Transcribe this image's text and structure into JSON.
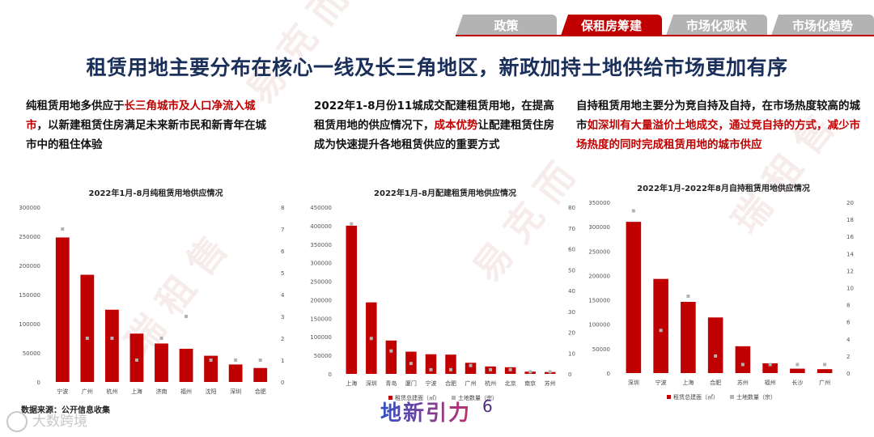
{
  "nav": {
    "tabs": [
      {
        "label": "政策",
        "active": false
      },
      {
        "label": "保租房筹建",
        "active": true
      },
      {
        "label": "市场化现状",
        "active": false
      },
      {
        "label": "市场化趋势",
        "active": false
      }
    ]
  },
  "title": "租赁用地主要分布在核心一线及长三角地区，新政加持土地供给市场更加有序",
  "descriptions": [
    {
      "parts": [
        {
          "text": "纯租赁用地多供应于",
          "hl": false
        },
        {
          "text": "长三角城市及人口净流入城市",
          "hl": true
        },
        {
          "text": "，以新建租赁住房满足未来新市民和新青年在城市中的租住体验",
          "hl": false
        }
      ]
    },
    {
      "parts": [
        {
          "text": "2022年1-8月份11城成交配建租赁用地，在提高租赁用地的供应情况下，",
          "hl": false
        },
        {
          "text": "成本优势",
          "hl": true
        },
        {
          "text": "让配建租赁住房成为快速提升各地租赁供应的重要方式",
          "hl": false
        }
      ]
    },
    {
      "parts": [
        {
          "text": "自持租赁用地主要分为竞自持及自持，在市场热度较高的城市",
          "hl": false
        },
        {
          "text": "如深圳有大量溢价土地成交，通过竞自持的方式，减少市场热度的同时完成租赁用地的城市供应",
          "hl": true
        }
      ]
    }
  ],
  "colors": {
    "bar": "#c00000",
    "marker": "#b3b3b3",
    "title": "#1a2f5a",
    "accent": "#c00000"
  },
  "chart_data": [
    {
      "type": "bar",
      "title": "2022年1月-8月纯租赁用地供应情况",
      "categories": [
        "宁波",
        "广州",
        "杭州",
        "上海",
        "济南",
        "福州",
        "沈阳",
        "深圳",
        "合肥"
      ],
      "series": [
        {
          "name": "",
          "axis": "left",
          "kind": "bar",
          "values": [
            248000,
            184000,
            124000,
            83000,
            66000,
            57000,
            45000,
            30000,
            24000
          ]
        },
        {
          "name": "",
          "axis": "right",
          "kind": "marker",
          "values": [
            7,
            2,
            2,
            1,
            2,
            3,
            1,
            1,
            1
          ]
        }
      ],
      "ylim_left": [
        0,
        300000
      ],
      "yticks_left": [
        0,
        50000,
        100000,
        150000,
        200000,
        250000,
        300000
      ],
      "ylim_right": [
        0,
        8
      ],
      "yticks_right": [
        0,
        1,
        2,
        3,
        4,
        5,
        6,
        7,
        8
      ],
      "legend": [],
      "legend_position": "none",
      "grid": false
    },
    {
      "type": "bar",
      "title": "2022年1月-8月配建租赁用地供应情况",
      "categories": [
        "上海",
        "深圳",
        "青岛",
        "厦门",
        "宁波",
        "合肥",
        "广州",
        "杭州",
        "北京",
        "南京",
        "苏州"
      ],
      "series": [
        {
          "name": "租赁总建面（㎡）",
          "axis": "left",
          "kind": "bar",
          "values": [
            400000,
            193000,
            90000,
            60000,
            53000,
            52000,
            30000,
            20000,
            18000,
            6000,
            5000
          ]
        },
        {
          "name": "土地数量（宗）",
          "axis": "right",
          "kind": "marker",
          "values": [
            72,
            17,
            11,
            5,
            2,
            2,
            4,
            2,
            2,
            1,
            1
          ]
        }
      ],
      "ylim_left": [
        0,
        450000
      ],
      "yticks_left": [
        0,
        50000,
        100000,
        150000,
        200000,
        250000,
        300000,
        350000,
        400000,
        450000
      ],
      "ylim_right": [
        0,
        80
      ],
      "yticks_right": [
        0,
        10,
        20,
        30,
        40,
        50,
        60,
        70,
        80
      ],
      "legend": [
        "租赁总建面（㎡）",
        "土地数量（宗）"
      ],
      "legend_position": "bottom",
      "grid": false
    },
    {
      "type": "bar",
      "title": "2022年1月-2022年8月自持租赁用地供应情况",
      "categories": [
        "深圳",
        "宁波",
        "上海",
        "合肥",
        "苏州",
        "福州",
        "长沙",
        "广州"
      ],
      "series": [
        {
          "name": "租赁总建面（㎡）",
          "axis": "left",
          "kind": "bar",
          "values": [
            310000,
            193000,
            146000,
            114000,
            55000,
            20000,
            9000,
            8000
          ]
        },
        {
          "name": "土地数量（宗）",
          "axis": "right",
          "kind": "marker",
          "values": [
            19,
            5,
            9,
            2,
            1,
            1,
            1,
            1
          ]
        }
      ],
      "ylim_left": [
        0,
        350000
      ],
      "yticks_left": [
        0,
        50000,
        100000,
        150000,
        200000,
        250000,
        300000,
        350000
      ],
      "ylim_right": [
        0,
        20
      ],
      "yticks_right": [
        0,
        2,
        4,
        6,
        8,
        10,
        12,
        14,
        16,
        18,
        20
      ],
      "legend": [
        "租赁总建面（㎡）",
        "土地数量（宗）"
      ],
      "legend_position": "bottom",
      "grid": false
    }
  ],
  "footer": {
    "source": "数据来源：公开信息收集",
    "page_number": "6",
    "brand": "地新引力",
    "watermark_logo": "大数跨境"
  }
}
